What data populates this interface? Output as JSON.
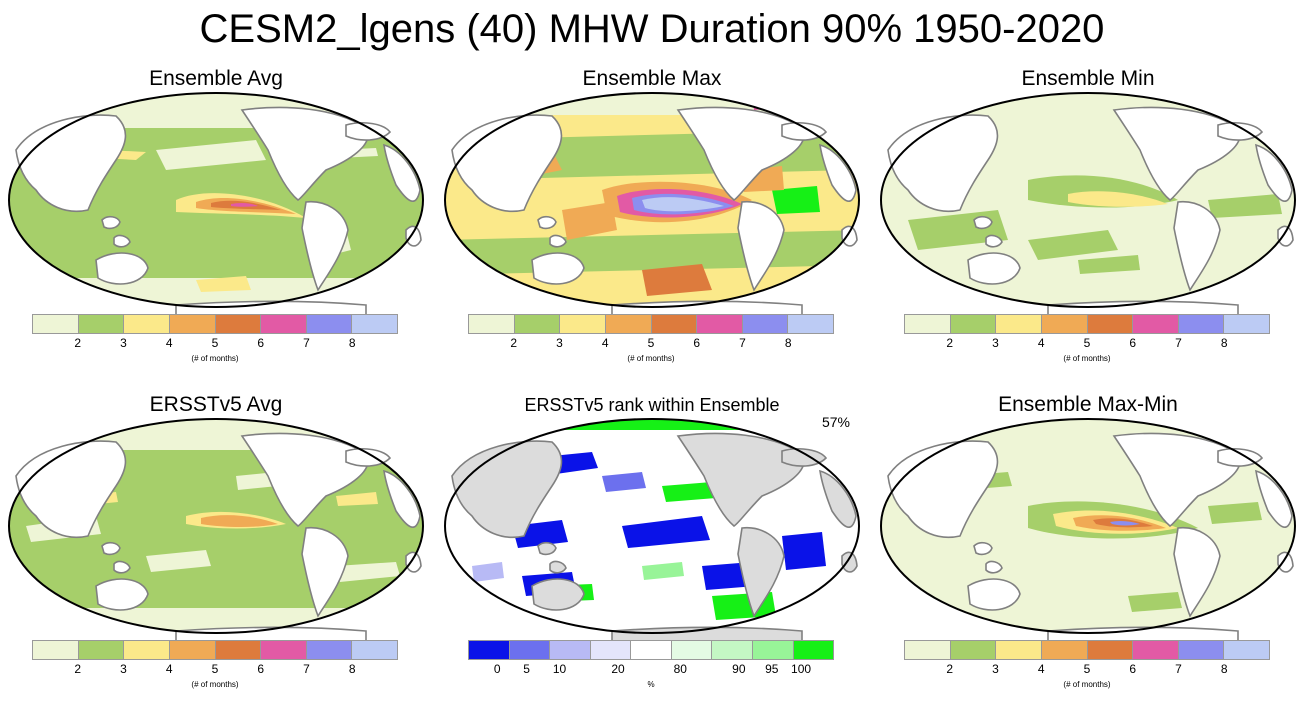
{
  "title": "CESM2_lgens (40) MHW Duration 90% 1950-2020",
  "colors": {
    "land": "#ffffff",
    "land_gray": "#dcdcdc",
    "coast": "#808080",
    "border": "#000000",
    "duration": [
      "#eef5d6",
      "#a6cf6a",
      "#fbe98a",
      "#f0aa55",
      "#dd7b3d",
      "#e25aa5",
      "#8c8eef",
      "#bccbf4"
    ],
    "rank": [
      "#0a12e8",
      "#6c70ee",
      "#b8baf5",
      "#e4e5fb",
      "#ffffff",
      "#e4fbe4",
      "#c4f7c4",
      "#98f498",
      "#16f016"
    ]
  },
  "panels": [
    {
      "id": "avg",
      "title": "Ensemble Avg",
      "legend": "duration"
    },
    {
      "id": "max",
      "title": "Ensemble Max",
      "legend": "duration"
    },
    {
      "id": "min",
      "title": "Ensemble Min",
      "legend": "duration"
    },
    {
      "id": "obs",
      "title": "ERSSTv5 Avg",
      "legend": "duration"
    },
    {
      "id": "rank",
      "title": "ERSSTv5 rank within Ensemble",
      "legend": "rank",
      "badge": "57%"
    },
    {
      "id": "range",
      "title": "Ensemble Max-Min",
      "legend": "duration"
    }
  ],
  "legends": {
    "duration": {
      "ticks": [
        "2",
        "3",
        "4",
        "5",
        "6",
        "7",
        "8"
      ],
      "unit": "(# of months)"
    },
    "rank": {
      "ticks": [
        "0",
        "5",
        "10",
        "20",
        "80",
        "90",
        "95",
        "100"
      ],
      "unit": "%"
    }
  }
}
